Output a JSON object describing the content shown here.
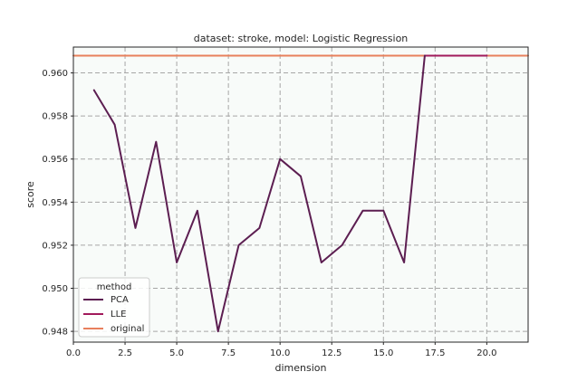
{
  "chart_data": {
    "type": "line",
    "title": "dataset: stroke, model: Logistic Regression",
    "xlabel": "dimension",
    "ylabel": "score",
    "xlim": [
      0,
      22
    ],
    "ylim": [
      0.9475,
      0.9612
    ],
    "xticks": [
      0.0,
      2.5,
      5.0,
      7.5,
      10.0,
      12.5,
      15.0,
      17.5,
      20.0
    ],
    "xtick_labels": [
      "0.0",
      "2.5",
      "5.0",
      "7.5",
      "10.0",
      "12.5",
      "15.0",
      "17.5",
      "20.0"
    ],
    "yticks": [
      0.948,
      0.95,
      0.952,
      0.954,
      0.956,
      0.958,
      0.96
    ],
    "ytick_labels": [
      "0.948",
      "0.950",
      "0.952",
      "0.954",
      "0.956",
      "0.958",
      "0.960"
    ],
    "grid": true,
    "legend": {
      "title": "method",
      "placement": "lower-left",
      "entries": [
        "PCA",
        "LLE",
        "original"
      ]
    },
    "series": [
      {
        "name": "PCA",
        "color": "#5c1e51",
        "x": [
          1,
          2,
          3,
          4,
          5,
          6,
          7,
          8,
          9,
          10,
          11,
          12,
          13,
          14,
          15,
          16,
          17
        ],
        "y": [
          0.9592,
          0.9576,
          0.9528,
          0.9568,
          0.9512,
          0.9536,
          0.948,
          0.952,
          0.9528,
          0.956,
          0.9552,
          0.9512,
          0.952,
          0.9536,
          0.9536,
          0.9512,
          0.9608
        ]
      },
      {
        "name": "LLE",
        "color": "#a11a5b",
        "x": [
          17,
          18,
          19,
          20
        ],
        "y": [
          0.9608,
          0.9608,
          0.9608,
          0.9608
        ]
      },
      {
        "name": "original",
        "color": "#e8805c",
        "x": [
          0,
          22
        ],
        "y": [
          0.9608,
          0.9608
        ]
      }
    ]
  }
}
